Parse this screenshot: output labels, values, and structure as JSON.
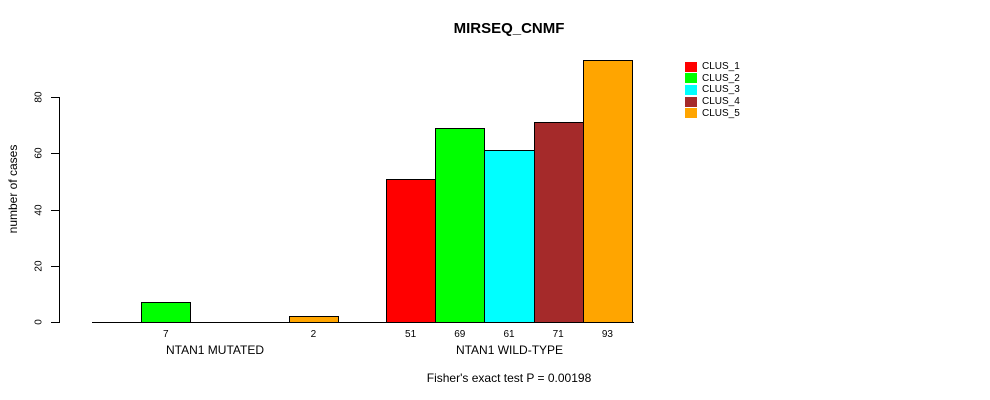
{
  "chart_data": {
    "type": "bar",
    "title": "MIRSEQ_CNMF",
    "ylabel": "number of cases",
    "note": "Fisher's exact test P = 0.00198",
    "categories": [
      "NTAN1 MUTATED",
      "NTAN1 WILD-TYPE"
    ],
    "series": [
      {
        "name": "CLUS_1",
        "color": "#FF0000",
        "values": [
          0,
          51
        ]
      },
      {
        "name": "CLUS_2",
        "color": "#00FF00",
        "values": [
          7,
          69
        ]
      },
      {
        "name": "CLUS_3",
        "color": "#00FFFF",
        "values": [
          0,
          61
        ]
      },
      {
        "name": "CLUS_4",
        "color": "#A52A2A",
        "values": [
          0,
          71
        ]
      },
      {
        "name": "CLUS_5",
        "color": "#FFA500",
        "values": [
          2,
          93
        ]
      }
    ],
    "bar_value_labels_shown": true,
    "yticks": [
      0,
      20,
      40,
      60,
      80
    ],
    "ylim": [
      0,
      94
    ],
    "grid": false,
    "legend_position": "right",
    "axis_color": "#000000",
    "background_color": "#FFFFFF"
  }
}
